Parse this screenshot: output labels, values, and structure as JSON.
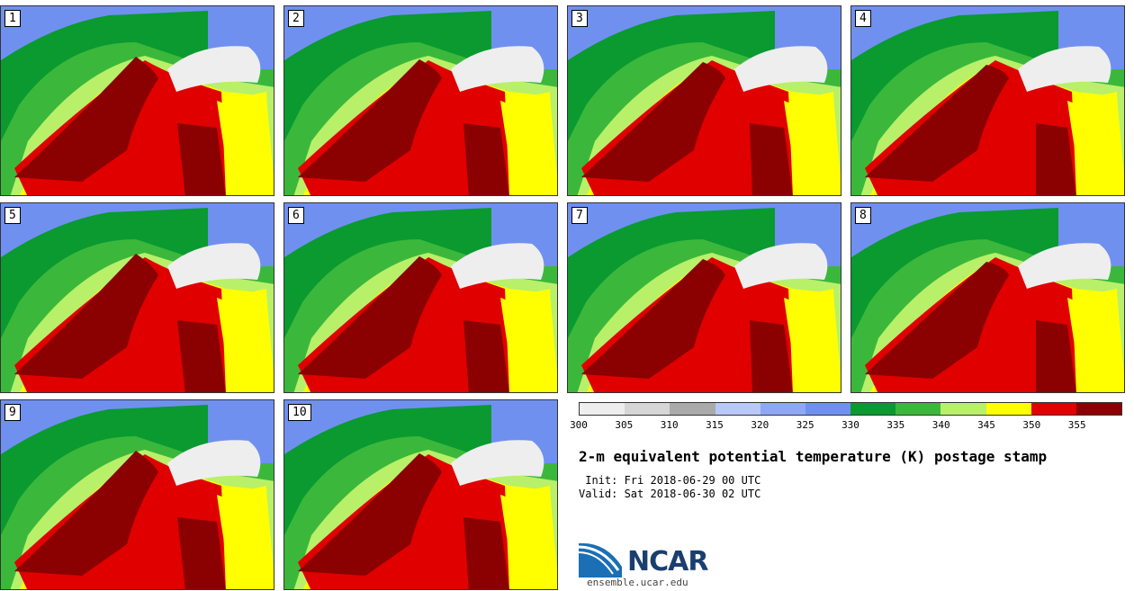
{
  "panels": [
    {
      "label": "1"
    },
    {
      "label": "2"
    },
    {
      "label": "3"
    },
    {
      "label": "4"
    },
    {
      "label": "5"
    },
    {
      "label": "6"
    },
    {
      "label": "7"
    },
    {
      "label": "8"
    },
    {
      "label": "9"
    },
    {
      "label": "10"
    }
  ],
  "colorbar": {
    "ticks": [
      "300",
      "305",
      "310",
      "315",
      "320",
      "325",
      "330",
      "335",
      "340",
      "345",
      "350",
      "355"
    ],
    "colors": [
      "#eeeeee",
      "#d6d6d6",
      "#aaaaaa",
      "#b8c8f8",
      "#8fa8f5",
      "#7090f0",
      "#0a9a30",
      "#3bb83b",
      "#b8f06a",
      "#ffff00",
      "#e00000",
      "#8b0000"
    ]
  },
  "title": "2-m equivalent potential temperature (K) postage stamp",
  "init": " Init: Fri 2018-06-29 00 UTC",
  "valid": "Valid: Sat 2018-06-30 02 UTC",
  "logo": {
    "name": "NCAR",
    "url": "ensemble.ucar.edu"
  }
}
